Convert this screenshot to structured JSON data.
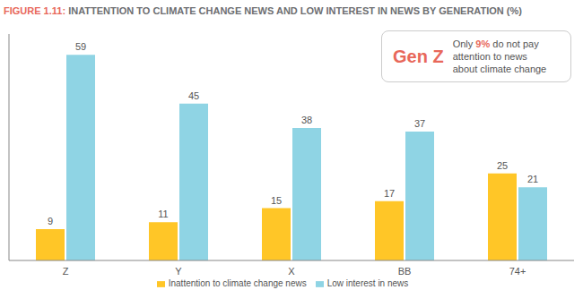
{
  "chart_data": {
    "type": "bar",
    "title": "FIGURE 1.11: INATTENTION TO CLIMATE CHANGE NEWS AND LOW INTEREST IN NEWS BY GENERATION (%)",
    "categories": [
      "Z",
      "Y",
      "X",
      "BB",
      "74+"
    ],
    "series": [
      {
        "name": "Inattention to climate change news",
        "color": "#ffc627",
        "values": [
          9,
          11,
          15,
          17,
          25
        ]
      },
      {
        "name": "Low interest in news",
        "color": "#8fd4e4",
        "values": [
          59,
          45,
          38,
          37,
          21
        ]
      }
    ],
    "ylim": [
      0,
      65
    ],
    "data_labels": true,
    "tick_labels": "x",
    "legend": "bottom",
    "annotation": {
      "heading": "Gen Z",
      "lines": [
        [
          "Only ",
          "9%",
          " do not pay"
        ],
        [
          "attention to news"
        ],
        [
          "about climate change"
        ]
      ]
    }
  }
}
